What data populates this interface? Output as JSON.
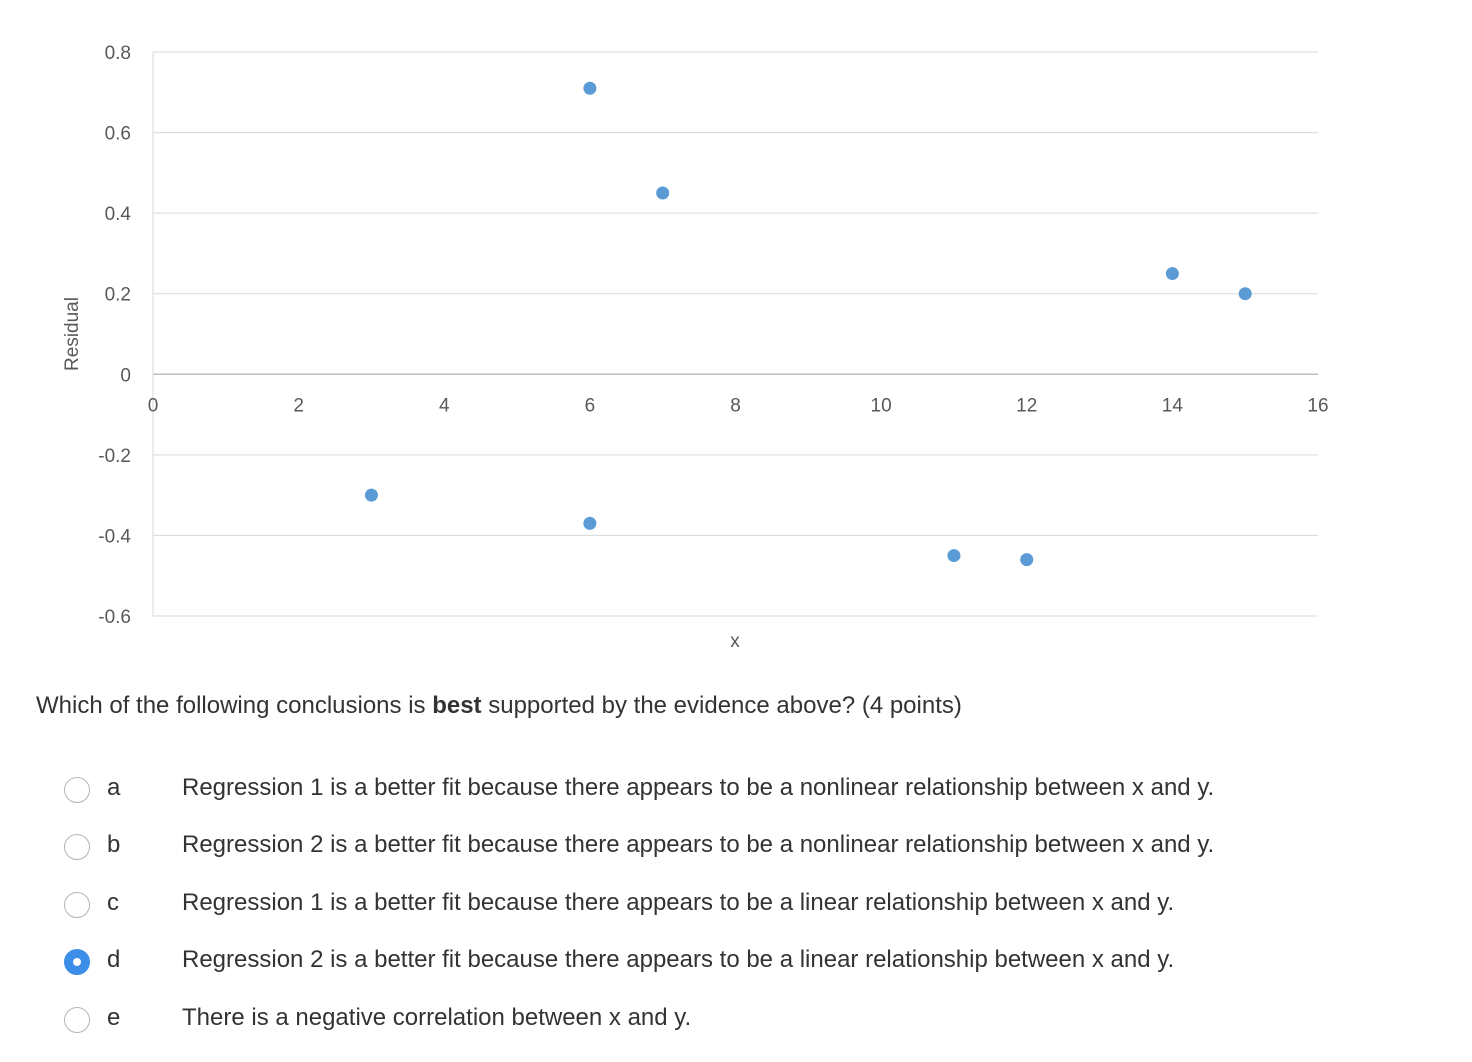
{
  "chart_data": {
    "type": "scatter",
    "xlabel": "x",
    "ylabel": "Residual",
    "xlim": [
      0,
      16
    ],
    "ylim": [
      -0.6,
      0.8
    ],
    "x_ticks": [
      "0",
      "2",
      "4",
      "6",
      "8",
      "10",
      "12",
      "14",
      "16"
    ],
    "y_ticks": [
      "0.8",
      "0.6",
      "0.4",
      "0.2",
      "0",
      "-0.2",
      "-0.4",
      "-0.6"
    ],
    "grid": true,
    "point_color": "#5b9bd5",
    "points": [
      {
        "x": 3,
        "y": -0.3
      },
      {
        "x": 6,
        "y": 0.71
      },
      {
        "x": 6,
        "y": -0.37
      },
      {
        "x": 7,
        "y": 0.45
      },
      {
        "x": 11,
        "y": -0.45
      },
      {
        "x": 12,
        "y": -0.46
      },
      {
        "x": 14,
        "y": 0.25
      },
      {
        "x": 15,
        "y": 0.2
      }
    ]
  },
  "question": {
    "prefix": "Which of the following conclusions is ",
    "emphasis": "best",
    "suffix": " supported by the evidence above? (4 points)"
  },
  "options": [
    {
      "letter": "a",
      "text": "Regression 1 is a better fit because there appears to be a nonlinear relationship between x and y.",
      "selected": false
    },
    {
      "letter": "b",
      "text": "Regression 2 is a better fit because there appears to be a nonlinear relationship between x and y.",
      "selected": false
    },
    {
      "letter": "c",
      "text": "Regression 1 is a better fit because there appears to be a linear relationship between x and y.",
      "selected": false
    },
    {
      "letter": "d",
      "text": "Regression 2 is a better fit because there appears to be a linear relationship between x and y.",
      "selected": true
    },
    {
      "letter": "e",
      "text": "There is a negative correlation between x and y.",
      "selected": false
    }
  ],
  "accent_color": "#3d8ee8"
}
